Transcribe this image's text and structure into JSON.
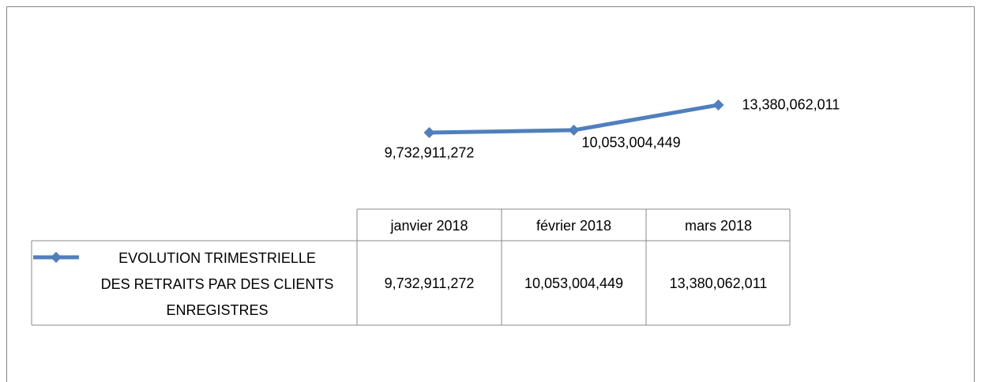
{
  "chart_data": {
    "type": "line",
    "categories": [
      "janvier 2018",
      "février 2018",
      "mars 2018"
    ],
    "series": [
      {
        "name": "EVOLUTION TRIMESTRIELLE\nDES RETRAITS PAR DES CLIENTS\nENREGISTRES",
        "color": "#4f7fbd",
        "values": [
          9732911272,
          10053004449,
          13380062011
        ],
        "value_labels": [
          "9,732,911,272",
          "10,053,004,449",
          "13,380,062,011"
        ]
      }
    ],
    "ylim": [
      0,
      14000000000
    ]
  }
}
